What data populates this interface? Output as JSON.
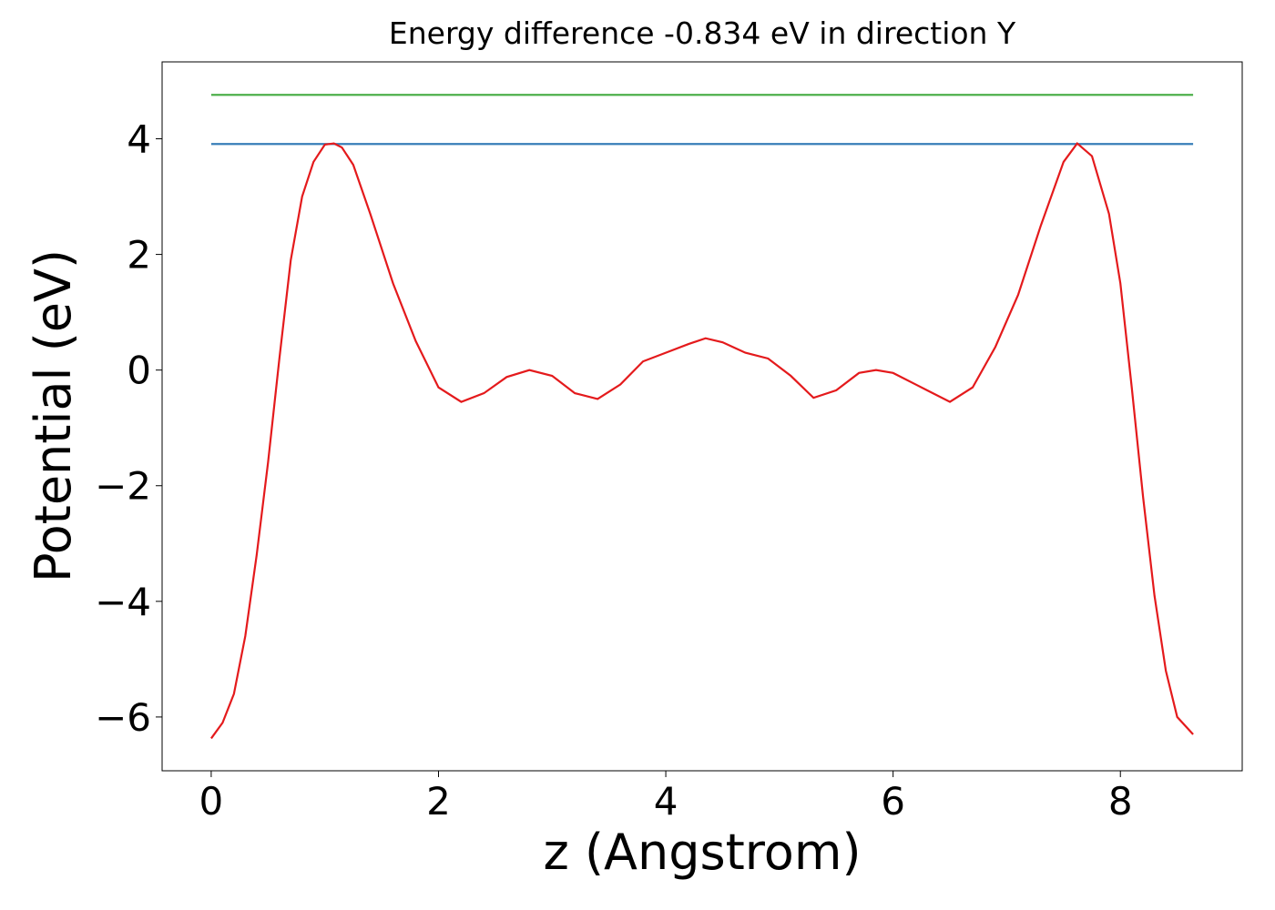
{
  "chart_data": {
    "type": "line",
    "title": "Energy difference -0.834 eV in direction Y",
    "xlabel": "z (Angstrom)",
    "ylabel": "Potential (eV)",
    "xlim": [
      -0.432,
      9.072
    ],
    "ylim": [
      -6.93,
      5.33
    ],
    "xticks": [
      0,
      2,
      4,
      6,
      8
    ],
    "yticks": [
      {
        "value": -6,
        "label": "−6"
      },
      {
        "value": -4,
        "label": "−4"
      },
      {
        "value": -2,
        "label": "−2"
      },
      0,
      2,
      4
    ],
    "grid": false,
    "series": [
      {
        "color": "#e41a1c",
        "x": [
          0,
          0.1,
          0.2,
          0.3,
          0.4,
          0.5,
          0.6,
          0.7,
          0.8,
          0.9,
          1.0,
          1.08,
          1.15,
          1.25,
          1.4,
          1.6,
          1.8,
          2.0,
          2.2,
          2.4,
          2.6,
          2.8,
          3.0,
          3.2,
          3.4,
          3.6,
          3.8,
          4.0,
          4.2,
          4.35,
          4.5,
          4.7,
          4.9,
          5.1,
          5.3,
          5.5,
          5.7,
          5.85,
          6.0,
          6.2,
          6.5,
          6.7,
          6.9,
          7.1,
          7.3,
          7.5,
          7.62,
          7.75,
          7.9,
          8.0,
          8.1,
          8.2,
          8.3,
          8.4,
          8.5,
          8.64
        ],
        "values": [
          -6.37,
          -6.1,
          -5.6,
          -4.6,
          -3.2,
          -1.6,
          0.2,
          1.9,
          3.0,
          3.6,
          3.9,
          3.92,
          3.85,
          3.55,
          2.7,
          1.5,
          0.5,
          -0.3,
          -0.55,
          -0.4,
          -0.12,
          0.0,
          -0.1,
          -0.4,
          -0.5,
          -0.25,
          0.15,
          0.3,
          0.45,
          0.55,
          0.48,
          0.3,
          0.2,
          -0.1,
          -0.48,
          -0.35,
          -0.05,
          0.0,
          -0.05,
          -0.25,
          -0.55,
          -0.3,
          0.4,
          1.3,
          2.5,
          3.6,
          3.92,
          3.7,
          2.7,
          1.5,
          -0.3,
          -2.2,
          -3.9,
          -5.2,
          -6.0,
          -6.3
        ]
      },
      {
        "color": "#377eb8",
        "x": [
          0,
          8.64
        ],
        "values": [
          3.91,
          3.91
        ]
      },
      {
        "color": "#4daf4a",
        "x": [
          0,
          8.64
        ],
        "values": [
          4.76,
          4.76
        ]
      }
    ]
  }
}
